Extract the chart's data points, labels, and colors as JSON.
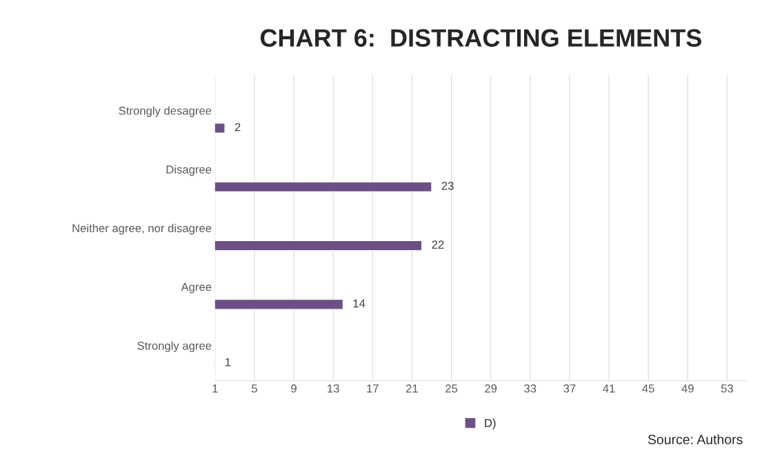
{
  "chart_data": {
    "type": "bar",
    "orientation": "horizontal",
    "title": "CHART 6:  DISTRACTING ELEMENTS",
    "categories": [
      "Strongly desagree",
      "Disagree",
      "Neither agree, nor disagree",
      "Agree",
      "Strongly agree"
    ],
    "series": [
      {
        "name": "D)",
        "color": "#6a5085",
        "values": [
          2,
          23,
          22,
          14,
          1
        ]
      }
    ],
    "xlim": [
      1,
      55
    ],
    "xticks": [
      1,
      5,
      9,
      13,
      17,
      21,
      25,
      29,
      33,
      37,
      41,
      45,
      49,
      53
    ],
    "grid": "x",
    "legend": "bottom",
    "data_labels": true,
    "annotations": [
      "Source: Authors"
    ]
  }
}
